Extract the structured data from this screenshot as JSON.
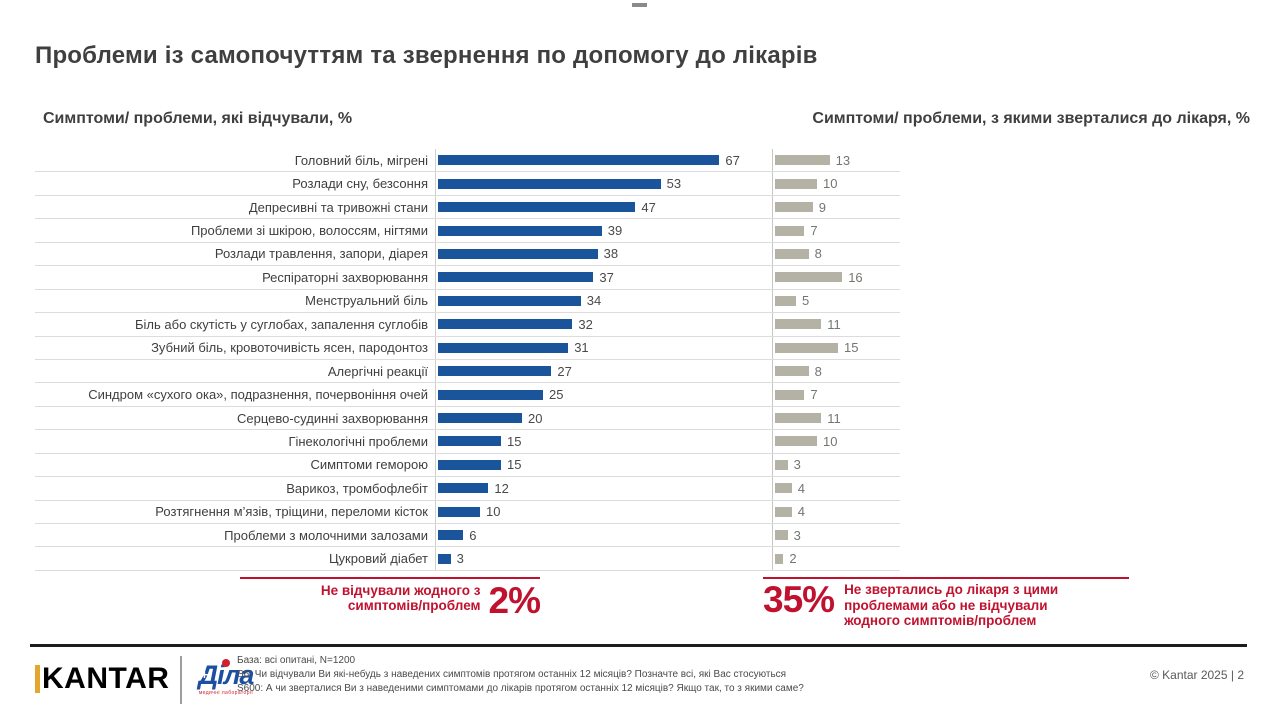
{
  "slide": {
    "title": "Проблеми із самопочуттям та звернення по допомогу до лікарів",
    "left_subtitle": "Симптоми/ проблеми, які відчували, %",
    "right_subtitle": "Симптоми/ проблеми, з якими зверталися до лікаря, %"
  },
  "chart_data": {
    "type": "bar",
    "orientation": "horizontal",
    "categories": [
      "Головний біль, мігрені",
      "Розлади сну, безсоння",
      "Депресивні та тривожні стани",
      "Проблеми зі шкірою, волоссям, нігтями",
      "Розлади травлення, запори, діарея",
      "Респіраторні захворювання",
      "Менструальний біль",
      "Біль або скутість у суглобах, запалення суглобів",
      "Зубний біль, кровоточивість ясен, пародонтоз",
      "Алергічні реакції",
      "Синдром «сухого ока», подразнення, почервоніння очей",
      "Серцево-судинні захворювання",
      "Гінекологічні проблеми",
      "Симптоми геморою",
      "Варикоз, тромбофлебіт",
      "Розтягнення м’язів, тріщини, переломи кісток",
      "Проблеми з молочними залозами",
      "Цукровий діабет"
    ],
    "series": [
      {
        "name": "Симптоми/ проблеми, які відчували, %",
        "color": "#1a549a",
        "values": [
          67,
          53,
          47,
          39,
          38,
          37,
          34,
          32,
          31,
          27,
          25,
          20,
          15,
          15,
          12,
          10,
          6,
          3
        ]
      },
      {
        "name": "Симптоми/ проблеми, з якими зверталися до лікаря, %",
        "color": "#b4b2a4",
        "values": [
          13,
          10,
          9,
          7,
          8,
          16,
          5,
          11,
          15,
          8,
          7,
          11,
          10,
          3,
          4,
          4,
          3,
          2
        ]
      }
    ],
    "xlim": [
      0,
      80
    ],
    "grid": "row-separators",
    "legend_position": "none"
  },
  "annotations": {
    "left": {
      "label": "Не відчували жодного з симптомів/проблем",
      "value": "2%"
    },
    "right": {
      "value": "35%",
      "label": "Не звертались до лікаря з цими проблемами або не відчували жодного симптомів/проблем"
    }
  },
  "footer": {
    "kantar_logo": "KANTAR",
    "dila_logo": "Діла",
    "dila_cross": "+",
    "dila_caption": "медичні лабораторії",
    "base": "База: всі опитані, N=1200",
    "q1": "S6: Чи відчували Ви які-небудь з наведених симптомів протягом останніх 12 місяців? Позначте всі, які Вас стосуються",
    "q2": "S600: А чи зверталися Ви з наведеними симптомами до лікарів протягом останніх 12 місяців? Якщо так, то з якими саме?",
    "copyright": "© Kantar 2025 | 2"
  },
  "colors": {
    "bar_blue": "#1a549a",
    "bar_beige": "#b4b2a4",
    "accent_red": "#c0122f",
    "title_gray": "#3f3f3f",
    "separator": "#dcdcdc"
  }
}
